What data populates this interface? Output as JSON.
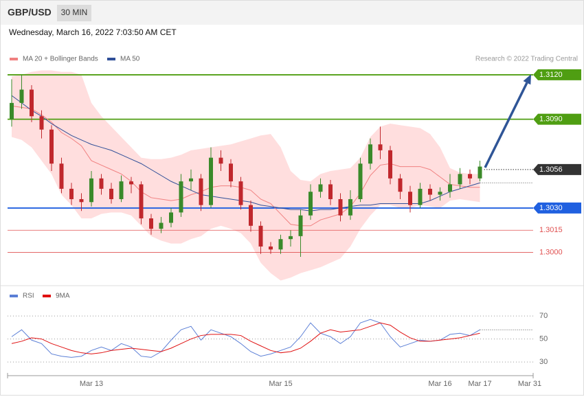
{
  "header": {
    "symbol": "GBP/USD",
    "timeframe": "30 MIN",
    "timestamp": "Wednesday, March 16, 2022 7:03:50 AM CET"
  },
  "chart_data": [
    {
      "type": "candlestick",
      "credit": "Research © 2022 Trading Central",
      "up_color": "#3a8a2a",
      "down_color": "#c0282d",
      "open": [
        1.309,
        1.3101,
        1.311,
        1.3092,
        1.3083,
        1.306,
        1.3043,
        1.3036,
        1.3034,
        1.305,
        1.3043,
        1.3036,
        1.3048,
        1.3046,
        1.3023,
        1.3016,
        1.302,
        1.3027,
        1.3048,
        1.305,
        1.3032,
        1.3064,
        1.306,
        1.3048,
        1.3032,
        1.3018,
        1.3004,
        1.3002,
        1.3009,
        1.3011,
        1.3025,
        1.3041,
        1.3046,
        1.3036,
        1.3025,
        1.3036,
        1.306,
        1.3073,
        1.3069,
        1.305,
        1.3041,
        1.3032,
        1.3043,
        1.3039,
        1.3041,
        1.3046,
        1.3053,
        1.305,
        null,
        null,
        null,
        null,
        null
      ],
      "high": [
        1.3117,
        1.312,
        1.3113,
        1.3096,
        1.3086,
        1.3064,
        1.3047,
        1.304,
        1.3055,
        1.3053,
        1.3047,
        1.3052,
        1.3051,
        1.3048,
        1.3026,
        1.3024,
        1.303,
        1.3053,
        1.3056,
        1.3053,
        1.3071,
        1.3069,
        1.3063,
        1.3051,
        1.3035,
        1.3021,
        1.3007,
        1.3012,
        1.3015,
        1.3029,
        1.3046,
        1.305,
        1.3049,
        1.304,
        1.3042,
        1.3064,
        1.3077,
        1.3085,
        1.3072,
        1.3053,
        1.3045,
        1.3047,
        1.3046,
        1.3044,
        1.3053,
        1.3057,
        1.3056,
        1.3062,
        null,
        null,
        null,
        null,
        null
      ],
      "low": [
        1.3085,
        1.3097,
        1.3088,
        1.3077,
        1.3055,
        1.304,
        1.3032,
        1.3028,
        1.3031,
        1.3039,
        1.3033,
        1.3034,
        1.304,
        1.3019,
        1.3012,
        1.3013,
        1.3017,
        1.3024,
        1.3042,
        1.3028,
        1.303,
        1.3055,
        1.3044,
        1.3029,
        1.3014,
        1.2999,
        1.2999,
        1.2999,
        1.3004,
        1.2997,
        1.3022,
        1.3037,
        1.3032,
        1.3021,
        1.3022,
        1.3034,
        1.3056,
        1.3063,
        1.3046,
        1.3036,
        1.3027,
        1.303,
        1.3035,
        1.3035,
        1.3037,
        1.3043,
        1.3046,
        1.3048,
        null,
        null,
        null,
        null,
        null
      ],
      "close": [
        1.3101,
        1.311,
        1.3092,
        1.3083,
        1.306,
        1.3043,
        1.3036,
        1.3034,
        1.305,
        1.3043,
        1.3036,
        1.3048,
        1.3046,
        1.3023,
        1.3016,
        1.302,
        1.3027,
        1.3048,
        1.305,
        1.3032,
        1.3064,
        1.306,
        1.3048,
        1.3032,
        1.3018,
        1.3004,
        1.3002,
        1.3009,
        1.3011,
        1.3025,
        1.3041,
        1.3046,
        1.3036,
        1.3025,
        1.3036,
        1.306,
        1.3073,
        1.3069,
        1.305,
        1.3041,
        1.3032,
        1.3043,
        1.3039,
        1.3041,
        1.3046,
        1.3053,
        1.305,
        1.3058,
        null,
        null,
        null,
        null,
        null
      ],
      "series": [
        {
          "name": "MA 20 + Bollinger Bands",
          "color": "#f08080",
          "band_color": "#ffdede",
          "values": [
            1.3099,
            1.3098,
            1.3097,
            1.3093,
            1.3088,
            1.3081,
            1.3077,
            1.3072,
            1.3062,
            1.3059,
            1.3056,
            1.3053,
            1.3048,
            1.3041,
            1.3037,
            1.3036,
            1.3035,
            1.3036,
            1.3039,
            1.3041,
            1.3044,
            1.3045,
            1.3045,
            1.3044,
            1.3042,
            1.3036,
            1.3033,
            1.3026,
            1.3019,
            1.3018,
            1.3018,
            1.3022,
            1.3024,
            1.3026,
            1.3031,
            1.304,
            1.3052,
            1.3059,
            1.306,
            1.3058,
            1.3058,
            1.3058,
            1.3056,
            1.3051,
            1.3046,
            1.3045,
            1.3044,
            1.3044,
            null,
            null,
            null,
            null,
            null
          ],
          "upper": [
            1.3119,
            1.312,
            1.3122,
            1.3123,
            1.3123,
            1.3122,
            1.3122,
            1.312,
            1.3101,
            1.3092,
            1.3085,
            1.3078,
            1.3071,
            1.3064,
            1.3063,
            1.3063,
            1.3064,
            1.3066,
            1.3069,
            1.307,
            1.3071,
            1.3072,
            1.3073,
            1.3075,
            1.3077,
            1.3079,
            1.308,
            1.3071,
            1.3055,
            1.3049,
            1.3048,
            1.3053,
            1.3055,
            1.3056,
            1.3057,
            1.3064,
            1.3078,
            1.3085,
            1.3087,
            1.3086,
            1.3085,
            1.3084,
            1.308,
            1.3071,
            1.3057,
            1.3054,
            1.3053,
            1.3053,
            null,
            null,
            null,
            null,
            null
          ],
          "lower": [
            1.3078,
            1.3076,
            1.3071,
            1.3062,
            1.3053,
            1.3039,
            1.3032,
            1.3023,
            1.3023,
            1.3026,
            1.3027,
            1.3027,
            1.3025,
            1.3018,
            1.3011,
            1.3008,
            1.3006,
            1.3006,
            1.3009,
            1.3011,
            1.3016,
            1.3018,
            1.3016,
            1.3013,
            1.3006,
            1.2993,
            1.2986,
            1.2981,
            1.2983,
            1.2986,
            1.2988,
            1.299,
            1.2993,
            1.2996,
            1.3004,
            1.3016,
            1.3025,
            1.3032,
            1.3032,
            1.303,
            1.303,
            1.3032,
            1.3031,
            1.303,
            1.3035,
            1.3036,
            1.3035,
            1.3034,
            null,
            null,
            null,
            null,
            null
          ]
        },
        {
          "name": "MA 50",
          "color": "#2f4f98",
          "values": [
            1.3106,
            1.3101,
            1.3096,
            1.3092,
            1.3087,
            1.3083,
            1.3079,
            1.3076,
            1.3073,
            1.3071,
            1.3069,
            1.3066,
            1.3063,
            1.306,
            1.3056,
            1.3052,
            1.3048,
            1.3045,
            1.3042,
            1.3039,
            1.3038,
            1.3037,
            1.3036,
            1.3035,
            1.3034,
            1.3032,
            1.3031,
            1.303,
            1.3029,
            1.3029,
            1.3028,
            1.3029,
            1.3029,
            1.303,
            1.3031,
            1.3032,
            1.3032,
            1.3033,
            1.3033,
            1.3033,
            1.3033,
            1.3033,
            1.3035,
            1.3038,
            1.3041,
            1.3043,
            1.3045,
            1.3047,
            null,
            null,
            null,
            null,
            null
          ]
        }
      ],
      "levels": [
        {
          "value": 1.312,
          "label": "1.3120",
          "color": "#4f9e12",
          "style": "box"
        },
        {
          "value": 1.309,
          "label": "1.3090",
          "color": "#4f9e12",
          "style": "box"
        },
        {
          "value": 1.3056,
          "label": "1.3056",
          "color": "#333333",
          "style": "box-dotted"
        },
        {
          "value": 1.303,
          "label": "1.3030",
          "color": "#2060e0",
          "style": "box"
        },
        {
          "value": 1.3015,
          "label": "1.3015",
          "color": "#e05050",
          "style": "text"
        },
        {
          "value": 1.3,
          "label": "1.3000",
          "color": "#e05050",
          "style": "text"
        }
      ],
      "ylim": [
        1.2978,
        1.3126
      ]
    },
    {
      "type": "line",
      "categories": [
        null,
        null,
        null,
        null,
        null,
        null,
        null,
        null,
        "Mar 13",
        null,
        null,
        null,
        null,
        null,
        null,
        null,
        null,
        null,
        null,
        null,
        null,
        null,
        null,
        null,
        null,
        null,
        null,
        "Mar 15",
        null,
        null,
        null,
        null,
        null,
        null,
        null,
        null,
        null,
        null,
        null,
        null,
        null,
        null,
        null,
        "Mar 16",
        null,
        null,
        null,
        "Mar 17",
        null,
        null,
        null,
        null,
        "Mar 31"
      ],
      "series": [
        {
          "name": "RSI",
          "color": "#5b7fd6",
          "values": [
            52,
            58,
            49,
            46,
            37,
            35,
            34,
            35,
            40,
            43,
            40,
            46,
            43,
            35,
            34,
            39,
            49,
            58,
            61,
            49,
            58,
            55,
            52,
            46,
            39,
            35,
            37,
            40,
            43,
            52,
            64,
            55,
            52,
            46,
            52,
            64,
            67,
            64,
            52,
            43,
            46,
            49,
            48,
            49,
            54,
            55,
            53,
            58,
            null,
            null,
            null,
            null,
            null
          ]
        },
        {
          "name": "9MA",
          "color": "#e01010",
          "values": [
            46,
            48,
            51,
            50,
            46,
            43,
            40,
            38,
            37,
            38,
            40,
            41,
            42,
            41,
            40,
            39,
            42,
            46,
            50,
            53,
            54,
            54,
            54,
            53,
            48,
            44,
            40,
            38,
            39,
            42,
            48,
            55,
            58,
            56,
            57,
            58,
            61,
            64,
            62,
            56,
            51,
            48,
            48,
            49,
            50,
            51,
            53,
            55,
            null,
            null,
            null,
            null,
            null
          ]
        }
      ],
      "ylim": [
        19,
        82
      ],
      "yticks": [
        70,
        50,
        30
      ],
      "grid": true
    }
  ]
}
